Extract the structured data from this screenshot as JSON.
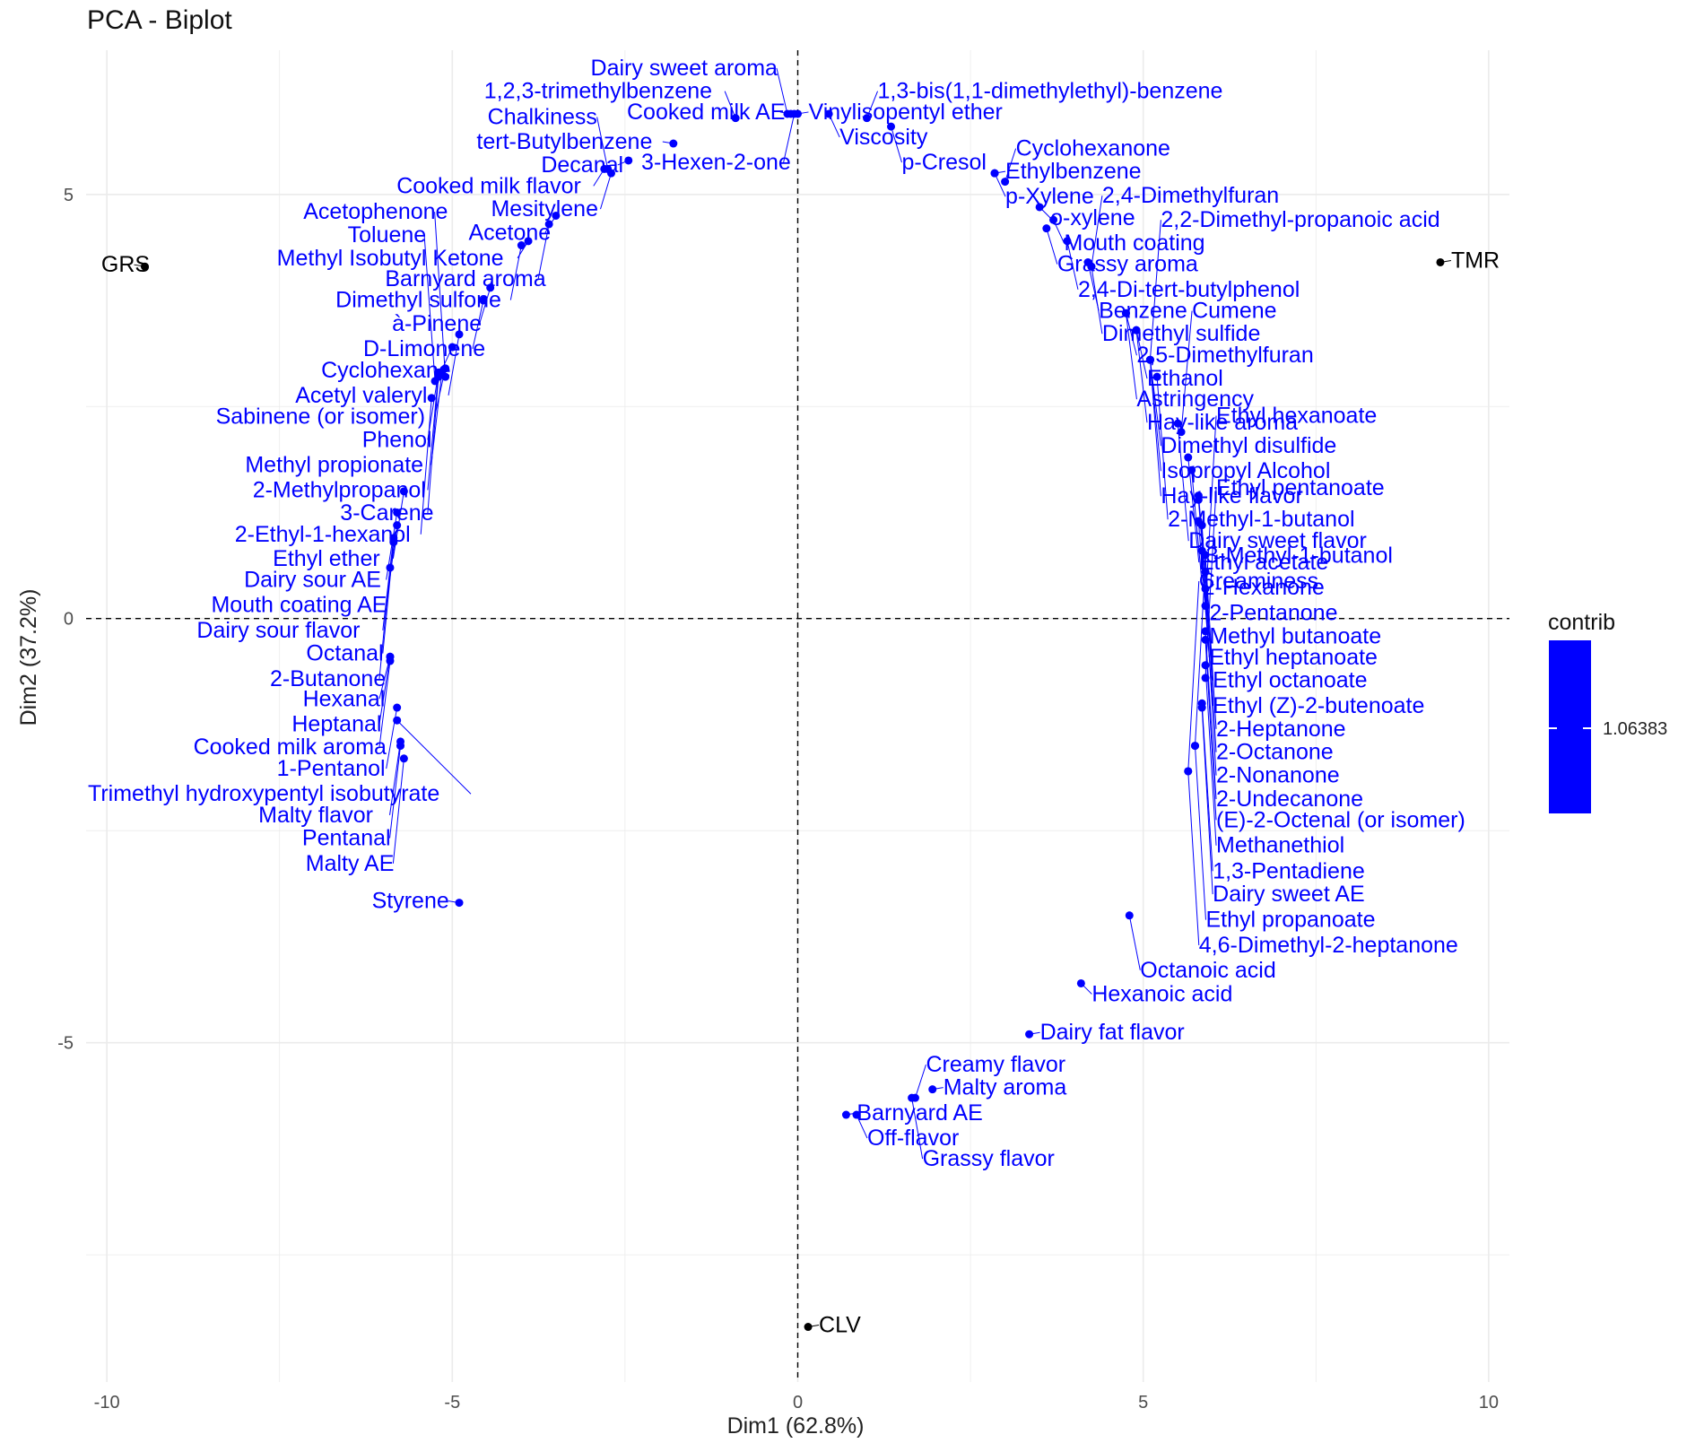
{
  "chart_data": {
    "type": "scatter",
    "title": "PCA - Biplot",
    "xlabel": "Dim1 (62.8%)",
    "ylabel": "Dim2 (37.2%)",
    "xlim": [
      -10.3,
      10.3
    ],
    "ylim": [
      -9,
      6.7
    ],
    "x_ticks": [
      -10,
      -5,
      0,
      5,
      10
    ],
    "y_ticks": [
      -5,
      0,
      5
    ],
    "x_tick_labels": [
      "-10",
      "-5",
      "0",
      "5",
      "10"
    ],
    "y_tick_labels": [
      "-5",
      "0",
      "5"
    ],
    "grid": true,
    "reference_lines": {
      "x": 0,
      "y": 0,
      "style": "dashed"
    },
    "legend": {
      "title": "contrib",
      "value_label": "1.06383",
      "placement": "right",
      "color": "#0000ff"
    },
    "colors": {
      "variables": "#0000ff",
      "individuals": "#000000"
    },
    "individuals": [
      {
        "label": "GRS",
        "x": -9.45,
        "y": 4.15
      },
      {
        "label": "TMR",
        "x": 9.3,
        "y": 4.2
      },
      {
        "label": "CLV",
        "x": 0.15,
        "y": -8.35
      }
    ],
    "variables": [
      {
        "label": "tert-Butylbenzene",
        "x": -1.8,
        "y": 5.6
      },
      {
        "label": "Cooked milk AE",
        "x": -0.1,
        "y": 5.95
      },
      {
        "label": "Vinylisopentyl ether",
        "x": 0.0,
        "y": 5.95
      },
      {
        "label": "1,2,3-trimethylbenzene",
        "x": -0.9,
        "y": 5.9
      },
      {
        "label": "Viscosity",
        "x": 0.45,
        "y": 5.95
      },
      {
        "label": "1,3-bis(1,1-dimethylethyl)-benzene",
        "x": 1.0,
        "y": 5.9
      },
      {
        "label": "Decanal",
        "x": -2.45,
        "y": 5.4
      },
      {
        "label": "Dairy sweet aroma",
        "x": -0.15,
        "y": 5.95
      },
      {
        "label": "p-Cresol",
        "x": 1.35,
        "y": 5.8
      },
      {
        "label": "Ethylbenzene",
        "x": 2.85,
        "y": 5.25
      },
      {
        "label": "Cooked milk flavor",
        "x": -2.8,
        "y": 5.3
      },
      {
        "label": "Mesitylene",
        "x": -2.7,
        "y": 5.25
      },
      {
        "label": "3-Hexen-2-one",
        "x": -0.05,
        "y": 5.95
      },
      {
        "label": "p-Xylene",
        "x": 2.85,
        "y": 5.25
      },
      {
        "label": "Cyclohexanone",
        "x": 3.0,
        "y": 5.15
      },
      {
        "label": "Acetone",
        "x": -3.5,
        "y": 4.75
      },
      {
        "label": "Chalkiness",
        "x": -2.75,
        "y": 5.3
      },
      {
        "label": "o-xylene",
        "x": 3.5,
        "y": 4.85
      },
      {
        "label": "Mouth coating",
        "x": 3.7,
        "y": 4.7
      },
      {
        "label": "Methyl Isobutyl Ketone",
        "x": -3.9,
        "y": 4.45
      },
      {
        "label": "Barnyard aroma",
        "x": -3.6,
        "y": 4.65
      },
      {
        "label": "Grassy aroma",
        "x": 3.6,
        "y": 4.6
      },
      {
        "label": "2,4-Di-tert-butylphenol",
        "x": 3.9,
        "y": 4.45
      },
      {
        "label": "Dimethyl sulfone",
        "x": -4.0,
        "y": 4.4
      },
      {
        "label": "à-Pinene",
        "x": -4.45,
        "y": 3.9
      },
      {
        "label": "Benzene",
        "x": 4.2,
        "y": 4.2
      },
      {
        "label": "Dimethyl sulfide",
        "x": 4.25,
        "y": 4.15
      },
      {
        "label": "D-Limonene",
        "x": -4.55,
        "y": 3.75
      },
      {
        "label": "2,5-Dimethylfuran",
        "x": 4.75,
        "y": 3.6
      },
      {
        "label": "2,4-Dimethylfuran",
        "x": 4.25,
        "y": 4.15
      },
      {
        "label": "Ethanol",
        "x": 4.9,
        "y": 3.4
      },
      {
        "label": "Astringency",
        "x": 4.75,
        "y": 3.6
      },
      {
        "label": "Hay-like aroma",
        "x": 4.9,
        "y": 3.4
      },
      {
        "label": "Dimethyl disulfide",
        "x": 5.1,
        "y": 3.05
      },
      {
        "label": "Cyclohexane",
        "x": -5.0,
        "y": 3.2
      },
      {
        "label": "Acetyl valeryl",
        "x": -4.9,
        "y": 3.35
      },
      {
        "label": "Sabinene (or isomer)",
        "x": -5.1,
        "y": 2.95
      },
      {
        "label": "Phenol",
        "x": -5.2,
        "y": 2.9
      },
      {
        "label": "Methyl propionate",
        "x": -5.15,
        "y": 2.9
      },
      {
        "label": "Isopropyl Alcohol",
        "x": 5.1,
        "y": 3.05
      },
      {
        "label": "Hay-like flavor",
        "x": 5.1,
        "y": 3.05
      },
      {
        "label": "2-Methyl-1-butanol",
        "x": 5.2,
        "y": 2.85
      },
      {
        "label": "2-Methylpropanol",
        "x": -5.2,
        "y": 2.9
      },
      {
        "label": "3-Carene",
        "x": -5.2,
        "y": 2.85
      },
      {
        "label": "2,2-Dimethyl-propanoic acid",
        "x": 5.1,
        "y": 3.05
      },
      {
        "label": "Dairy sweet flavor",
        "x": 5.5,
        "y": 2.3
      },
      {
        "label": "Cumene",
        "x": 5.55,
        "y": 2.2
      },
      {
        "label": "2-Ethyl-1-hexanol",
        "x": -5.3,
        "y": 2.6
      },
      {
        "label": "Toluene",
        "x": -5.25,
        "y": 2.8
      },
      {
        "label": "Acetophenone",
        "x": -5.1,
        "y": 2.85
      },
      {
        "label": "Ethyl acetate",
        "x": 5.65,
        "y": 1.9
      },
      {
        "label": "2-Hexanone",
        "x": 5.7,
        "y": 1.75
      },
      {
        "label": "Ethyl ether",
        "x": -5.7,
        "y": 1.5
      },
      {
        "label": "2-Pentanone",
        "x": 5.8,
        "y": 1.45
      },
      {
        "label": "Methyl butanoate",
        "x": 5.8,
        "y": 1.4
      },
      {
        "label": "Dairy sour AE",
        "x": -5.8,
        "y": 1.25
      },
      {
        "label": "Mouth coating AE",
        "x": -5.8,
        "y": 1.1
      },
      {
        "label": "Ethyl heptanoate",
        "x": 5.8,
        "y": 1.15
      },
      {
        "label": "Ethyl octanoate",
        "x": 5.85,
        "y": 1.1
      },
      {
        "label": "Dairy sour flavor",
        "x": -5.85,
        "y": 0.95
      },
      {
        "label": "Octanal",
        "x": -5.85,
        "y": 0.9
      },
      {
        "label": "Ethyl (Z)-2-butenoate",
        "x": 5.85,
        "y": 0.8
      },
      {
        "label": "2-Heptanone",
        "x": 5.9,
        "y": 0.75
      },
      {
        "label": "2-Butanone",
        "x": -5.9,
        "y": 0.6
      },
      {
        "label": "2-Octanone",
        "x": 5.9,
        "y": 0.55
      },
      {
        "label": "2-Nonanone",
        "x": 5.9,
        "y": 0.35
      },
      {
        "label": "Hexanal",
        "x": -5.9,
        "y": -0.45
      },
      {
        "label": "Ethyl hexanoate",
        "x": 5.9,
        "y": 0.15
      },
      {
        "label": "2-Undecanone",
        "x": 5.9,
        "y": -0.15
      },
      {
        "label": "Heptanal",
        "x": -5.9,
        "y": -0.45
      },
      {
        "label": "(E)-2-Octenal (or isomer)",
        "x": 5.9,
        "y": -0.25
      },
      {
        "label": "Methanethiol",
        "x": 5.9,
        "y": -0.55
      },
      {
        "label": "Cooked milk aroma",
        "x": -5.9,
        "y": -0.5
      },
      {
        "label": "Ethyl pentanoate",
        "x": 5.9,
        "y": -0.7
      },
      {
        "label": "1,3-Pentadiene",
        "x": 5.85,
        "y": -1.0
      },
      {
        "label": "1-Pentanol",
        "x": -5.8,
        "y": -1.05
      },
      {
        "label": "Trimethyl hydroxypentyl isobutyrate",
        "x": -5.8,
        "y": -1.2
      },
      {
        "label": "Dairy sweet AE",
        "x": 5.85,
        "y": -1.05
      },
      {
        "label": "Ethyl propanoate",
        "x": 5.75,
        "y": -1.5
      },
      {
        "label": "Malty flavor",
        "x": -5.75,
        "y": -1.45
      },
      {
        "label": "Pentanal",
        "x": -5.75,
        "y": -1.5
      },
      {
        "label": "3-Methyl-1-butanol",
        "x": 5.75,
        "y": -1.5
      },
      {
        "label": "4,6-Dimethyl-2-heptanone",
        "x": 5.65,
        "y": -1.8
      },
      {
        "label": "Malty AE",
        "x": -5.7,
        "y": -1.65
      },
      {
        "label": "Creaminess",
        "x": 5.65,
        "y": -1.8
      },
      {
        "label": "Styrene",
        "x": -4.9,
        "y": -3.35
      },
      {
        "label": "Octanoic acid",
        "x": 4.8,
        "y": -3.5
      },
      {
        "label": "Hexanoic acid",
        "x": 4.1,
        "y": -4.3
      },
      {
        "label": "Dairy fat flavor",
        "x": 3.35,
        "y": -4.9
      },
      {
        "label": "Malty aroma",
        "x": 1.95,
        "y": -5.55
      },
      {
        "label": "Barnyard AE",
        "x": 0.7,
        "y": -5.85
      },
      {
        "label": "Creamy flavor",
        "x": 1.7,
        "y": -5.65
      },
      {
        "label": "Off-flavor",
        "x": 0.85,
        "y": -5.85
      },
      {
        "label": "Grassy flavor",
        "x": 1.65,
        "y": -5.65
      }
    ]
  }
}
